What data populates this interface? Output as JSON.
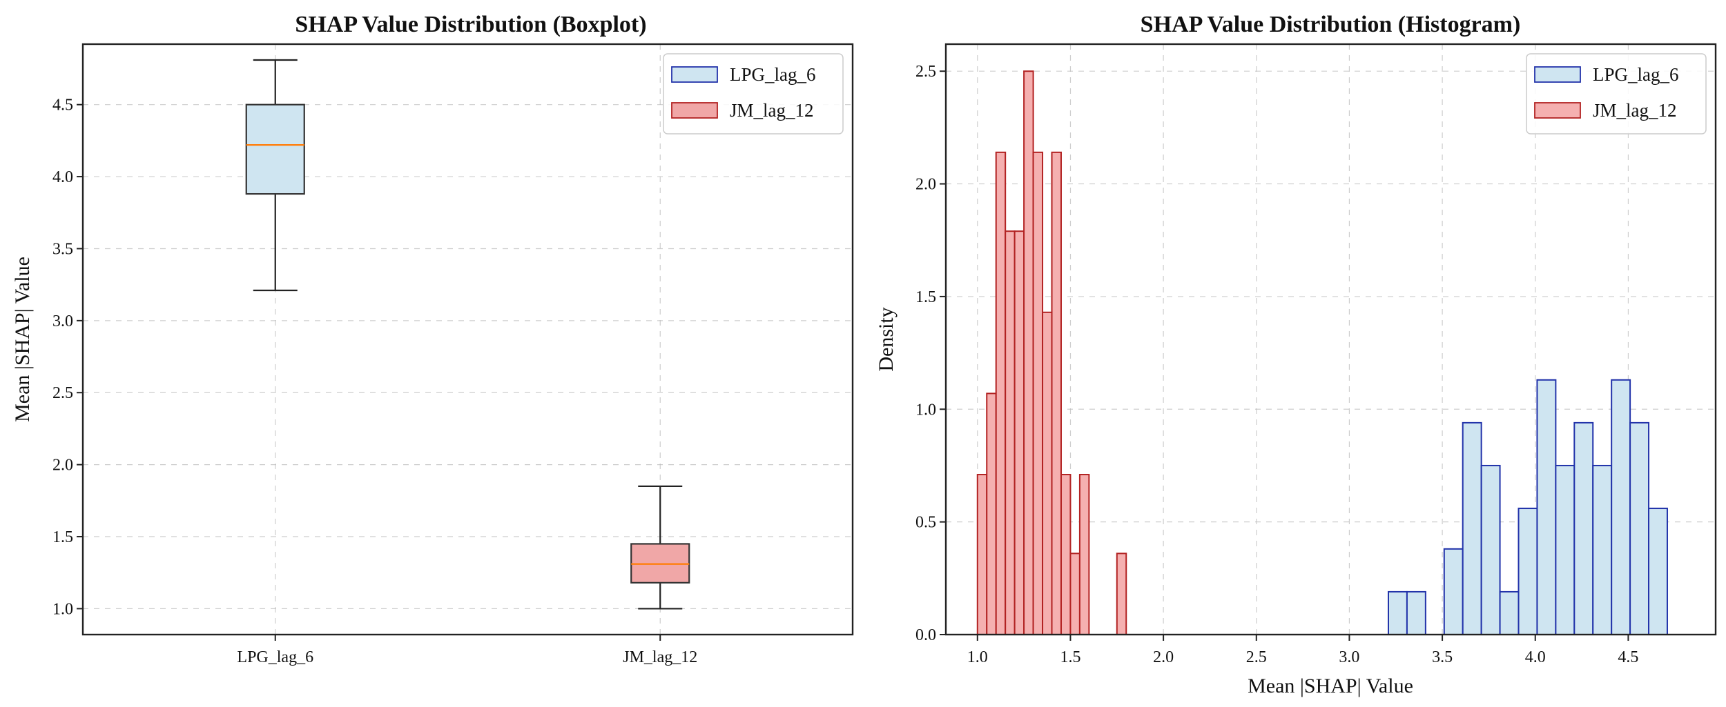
{
  "chart_data": [
    {
      "type": "boxplot",
      "title": "SHAP Value Distribution (Boxplot)",
      "xlabel": "",
      "ylabel": "Mean |SHAP| Value",
      "ylim": [
        0.82,
        4.92
      ],
      "yticks": [
        1.0,
        1.5,
        2.0,
        2.5,
        3.0,
        3.5,
        4.0,
        4.5
      ],
      "grid": true,
      "legend_position": "top-right",
      "series": [
        {
          "name": "LPG_lag_6",
          "fill": "#cfe5f1",
          "edge": "#333333",
          "whisker_low": 3.21,
          "q1": 3.88,
          "median": 4.22,
          "q3": 4.5,
          "whisker_high": 4.81
        },
        {
          "name": "JM_lag_12",
          "fill": "#f0a7a7",
          "edge": "#333333",
          "whisker_low": 1.0,
          "q1": 1.18,
          "median": 1.31,
          "q3": 1.45,
          "whisker_high": 1.85
        }
      ],
      "legend": [
        {
          "label": "LPG_lag_6",
          "fill": "#cfe5f1",
          "edge": "#2233aa"
        },
        {
          "label": "JM_lag_12",
          "fill": "#f0a7a7",
          "edge": "#b22222"
        }
      ],
      "median_color": "#ff7f0e"
    },
    {
      "type": "histogram",
      "title": "SHAP Value Distribution (Histogram)",
      "xlabel": "Mean |SHAP| Value",
      "ylabel": "Density",
      "xlim": [
        0.83,
        4.97
      ],
      "ylim": [
        0.0,
        2.62
      ],
      "xticks": [
        1.0,
        1.5,
        2.0,
        2.5,
        3.0,
        3.5,
        4.0,
        4.5
      ],
      "yticks": [
        0.0,
        0.5,
        1.0,
        1.5,
        2.0,
        2.5
      ],
      "grid": true,
      "legend_position": "top-right",
      "series": [
        {
          "name": "JM_lag_12",
          "fill": "#f5b0b0",
          "edge": "#b22222",
          "bins": [
            {
              "x0": 1.0,
              "x1": 1.05,
              "density": 0.71
            },
            {
              "x0": 1.05,
              "x1": 1.1,
              "density": 1.07
            },
            {
              "x0": 1.1,
              "x1": 1.15,
              "density": 2.14
            },
            {
              "x0": 1.15,
              "x1": 1.2,
              "density": 1.79
            },
            {
              "x0": 1.2,
              "x1": 1.25,
              "density": 1.79
            },
            {
              "x0": 1.25,
              "x1": 1.3,
              "density": 2.5
            },
            {
              "x0": 1.3,
              "x1": 1.35,
              "density": 2.14
            },
            {
              "x0": 1.35,
              "x1": 1.4,
              "density": 1.43
            },
            {
              "x0": 1.4,
              "x1": 1.45,
              "density": 2.14
            },
            {
              "x0": 1.45,
              "x1": 1.5,
              "density": 0.71
            },
            {
              "x0": 1.5,
              "x1": 1.55,
              "density": 0.36
            },
            {
              "x0": 1.55,
              "x1": 1.6,
              "density": 0.71
            },
            {
              "x0": 1.6,
              "x1": 1.65,
              "density": 0.0
            },
            {
              "x0": 1.65,
              "x1": 1.7,
              "density": 0.0
            },
            {
              "x0": 1.7,
              "x1": 1.75,
              "density": 0.0
            },
            {
              "x0": 1.75,
              "x1": 1.8,
              "density": 0.36
            },
            {
              "x0": 1.8,
              "x1": 1.85,
              "density": 0.0
            }
          ]
        },
        {
          "name": "LPG_lag_6",
          "fill": "#cfe5f1",
          "edge": "#2233aa",
          "bins": [
            {
              "x0": 3.21,
              "x1": 3.31,
              "density": 0.19
            },
            {
              "x0": 3.31,
              "x1": 3.41,
              "density": 0.19
            },
            {
              "x0": 3.41,
              "x1": 3.51,
              "density": 0.0
            },
            {
              "x0": 3.51,
              "x1": 3.61,
              "density": 0.38
            },
            {
              "x0": 3.61,
              "x1": 3.71,
              "density": 0.94
            },
            {
              "x0": 3.71,
              "x1": 3.81,
              "density": 0.75
            },
            {
              "x0": 3.81,
              "x1": 3.91,
              "density": 0.19
            },
            {
              "x0": 3.91,
              "x1": 4.01,
              "density": 0.56
            },
            {
              "x0": 4.01,
              "x1": 4.11,
              "density": 1.13
            },
            {
              "x0": 4.11,
              "x1": 4.21,
              "density": 0.75
            },
            {
              "x0": 4.21,
              "x1": 4.31,
              "density": 0.94
            },
            {
              "x0": 4.31,
              "x1": 4.41,
              "density": 0.75
            },
            {
              "x0": 4.41,
              "x1": 4.51,
              "density": 1.13
            },
            {
              "x0": 4.51,
              "x1": 4.61,
              "density": 0.94
            },
            {
              "x0": 4.61,
              "x1": 4.71,
              "density": 0.56
            }
          ]
        }
      ],
      "legend": [
        {
          "label": "LPG_lag_6",
          "fill": "#cfe5f1",
          "edge": "#2233aa"
        },
        {
          "label": "JM_lag_12",
          "fill": "#f5b0b0",
          "edge": "#b22222"
        }
      ]
    }
  ]
}
